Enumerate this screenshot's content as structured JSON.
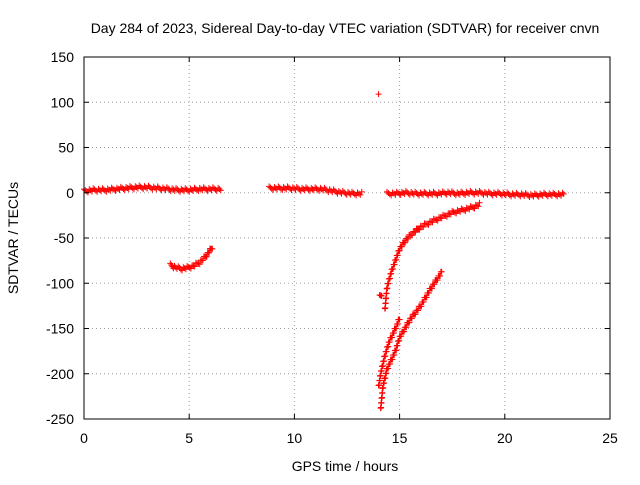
{
  "chart_data": {
    "type": "scatter",
    "title": "Day 284 of 2023, Sidereal Day-to-day VTEC variation (SDTVAR) for receiver cnvn",
    "xlabel": "GPS time / hours",
    "ylabel": "SDTVAR / TECUs",
    "xlim": [
      0,
      25
    ],
    "ylim": [
      -250,
      150
    ],
    "xticks": [
      0,
      5,
      10,
      15,
      20,
      25
    ],
    "yticks": [
      -250,
      -200,
      -150,
      -100,
      -50,
      0,
      50,
      100,
      150
    ],
    "grid": true,
    "legend": "none",
    "marker": "plus",
    "color": "#ff0000",
    "series": [
      {
        "x": [
          0.0,
          0.5,
          1.0,
          1.5,
          2.0,
          2.5,
          3.0,
          3.5,
          4.0,
          4.5,
          5.0,
          5.5,
          6.0,
          6.5
        ],
        "y": [
          2,
          3,
          3,
          4,
          5,
          6,
          6,
          5,
          4,
          3,
          3,
          4,
          4,
          4
        ]
      },
      {
        "x": [
          4.1,
          4.3,
          4.6,
          4.9,
          5.2,
          5.5,
          5.8,
          6.1
        ],
        "y": [
          -80,
          -82,
          -84,
          -83,
          -81,
          -77,
          -70,
          -60
        ]
      },
      {
        "x": [
          8.8,
          9.3,
          9.8,
          10.3,
          10.8,
          11.3,
          11.8,
          12.3,
          12.8,
          13.2
        ],
        "y": [
          5,
          5,
          5,
          4,
          4,
          4,
          2,
          0,
          -1,
          -1
        ]
      },
      {
        "x": [
          14.0
        ],
        "y": [
          109
        ]
      },
      {
        "x": [
          14.4,
          14.8,
          15.3,
          15.8,
          16.3,
          16.8,
          17.3,
          17.8,
          18.3,
          18.8,
          19.3,
          19.8,
          20.3,
          20.8,
          21.3,
          21.8,
          22.3,
          22.8
        ],
        "y": [
          -1,
          -1,
          0,
          -1,
          -1,
          -1,
          0,
          -1,
          0,
          0,
          -1,
          -1,
          -2,
          -2,
          -3,
          -2,
          -2,
          -2
        ]
      },
      {
        "x": [
          14.3,
          14.4,
          14.6,
          14.8,
          15.0,
          15.3,
          15.6,
          16.0,
          16.5,
          17.0,
          17.5,
          18.0,
          18.5,
          18.8
        ],
        "y": [
          -130,
          -105,
          -88,
          -75,
          -62,
          -52,
          -45,
          -38,
          -32,
          -27,
          -22,
          -19,
          -16,
          -13
        ]
      },
      {
        "x": [
          14.1,
          14.2,
          14.4,
          14.6,
          14.8,
          15.0,
          15.5,
          16.0,
          16.5,
          17.0
        ],
        "y": [
          -240,
          -215,
          -195,
          -185,
          -175,
          -160,
          -140,
          -125,
          -105,
          -88
        ]
      },
      {
        "x": [
          14.0,
          14.1,
          14.3,
          14.5,
          14.7,
          14.9,
          15.0
        ],
        "y": [
          -215,
          -200,
          -180,
          -165,
          -155,
          -145,
          -138
        ]
      },
      {
        "x": [
          14.05,
          14.15
        ],
        "y": [
          -115,
          -112
        ]
      }
    ]
  }
}
